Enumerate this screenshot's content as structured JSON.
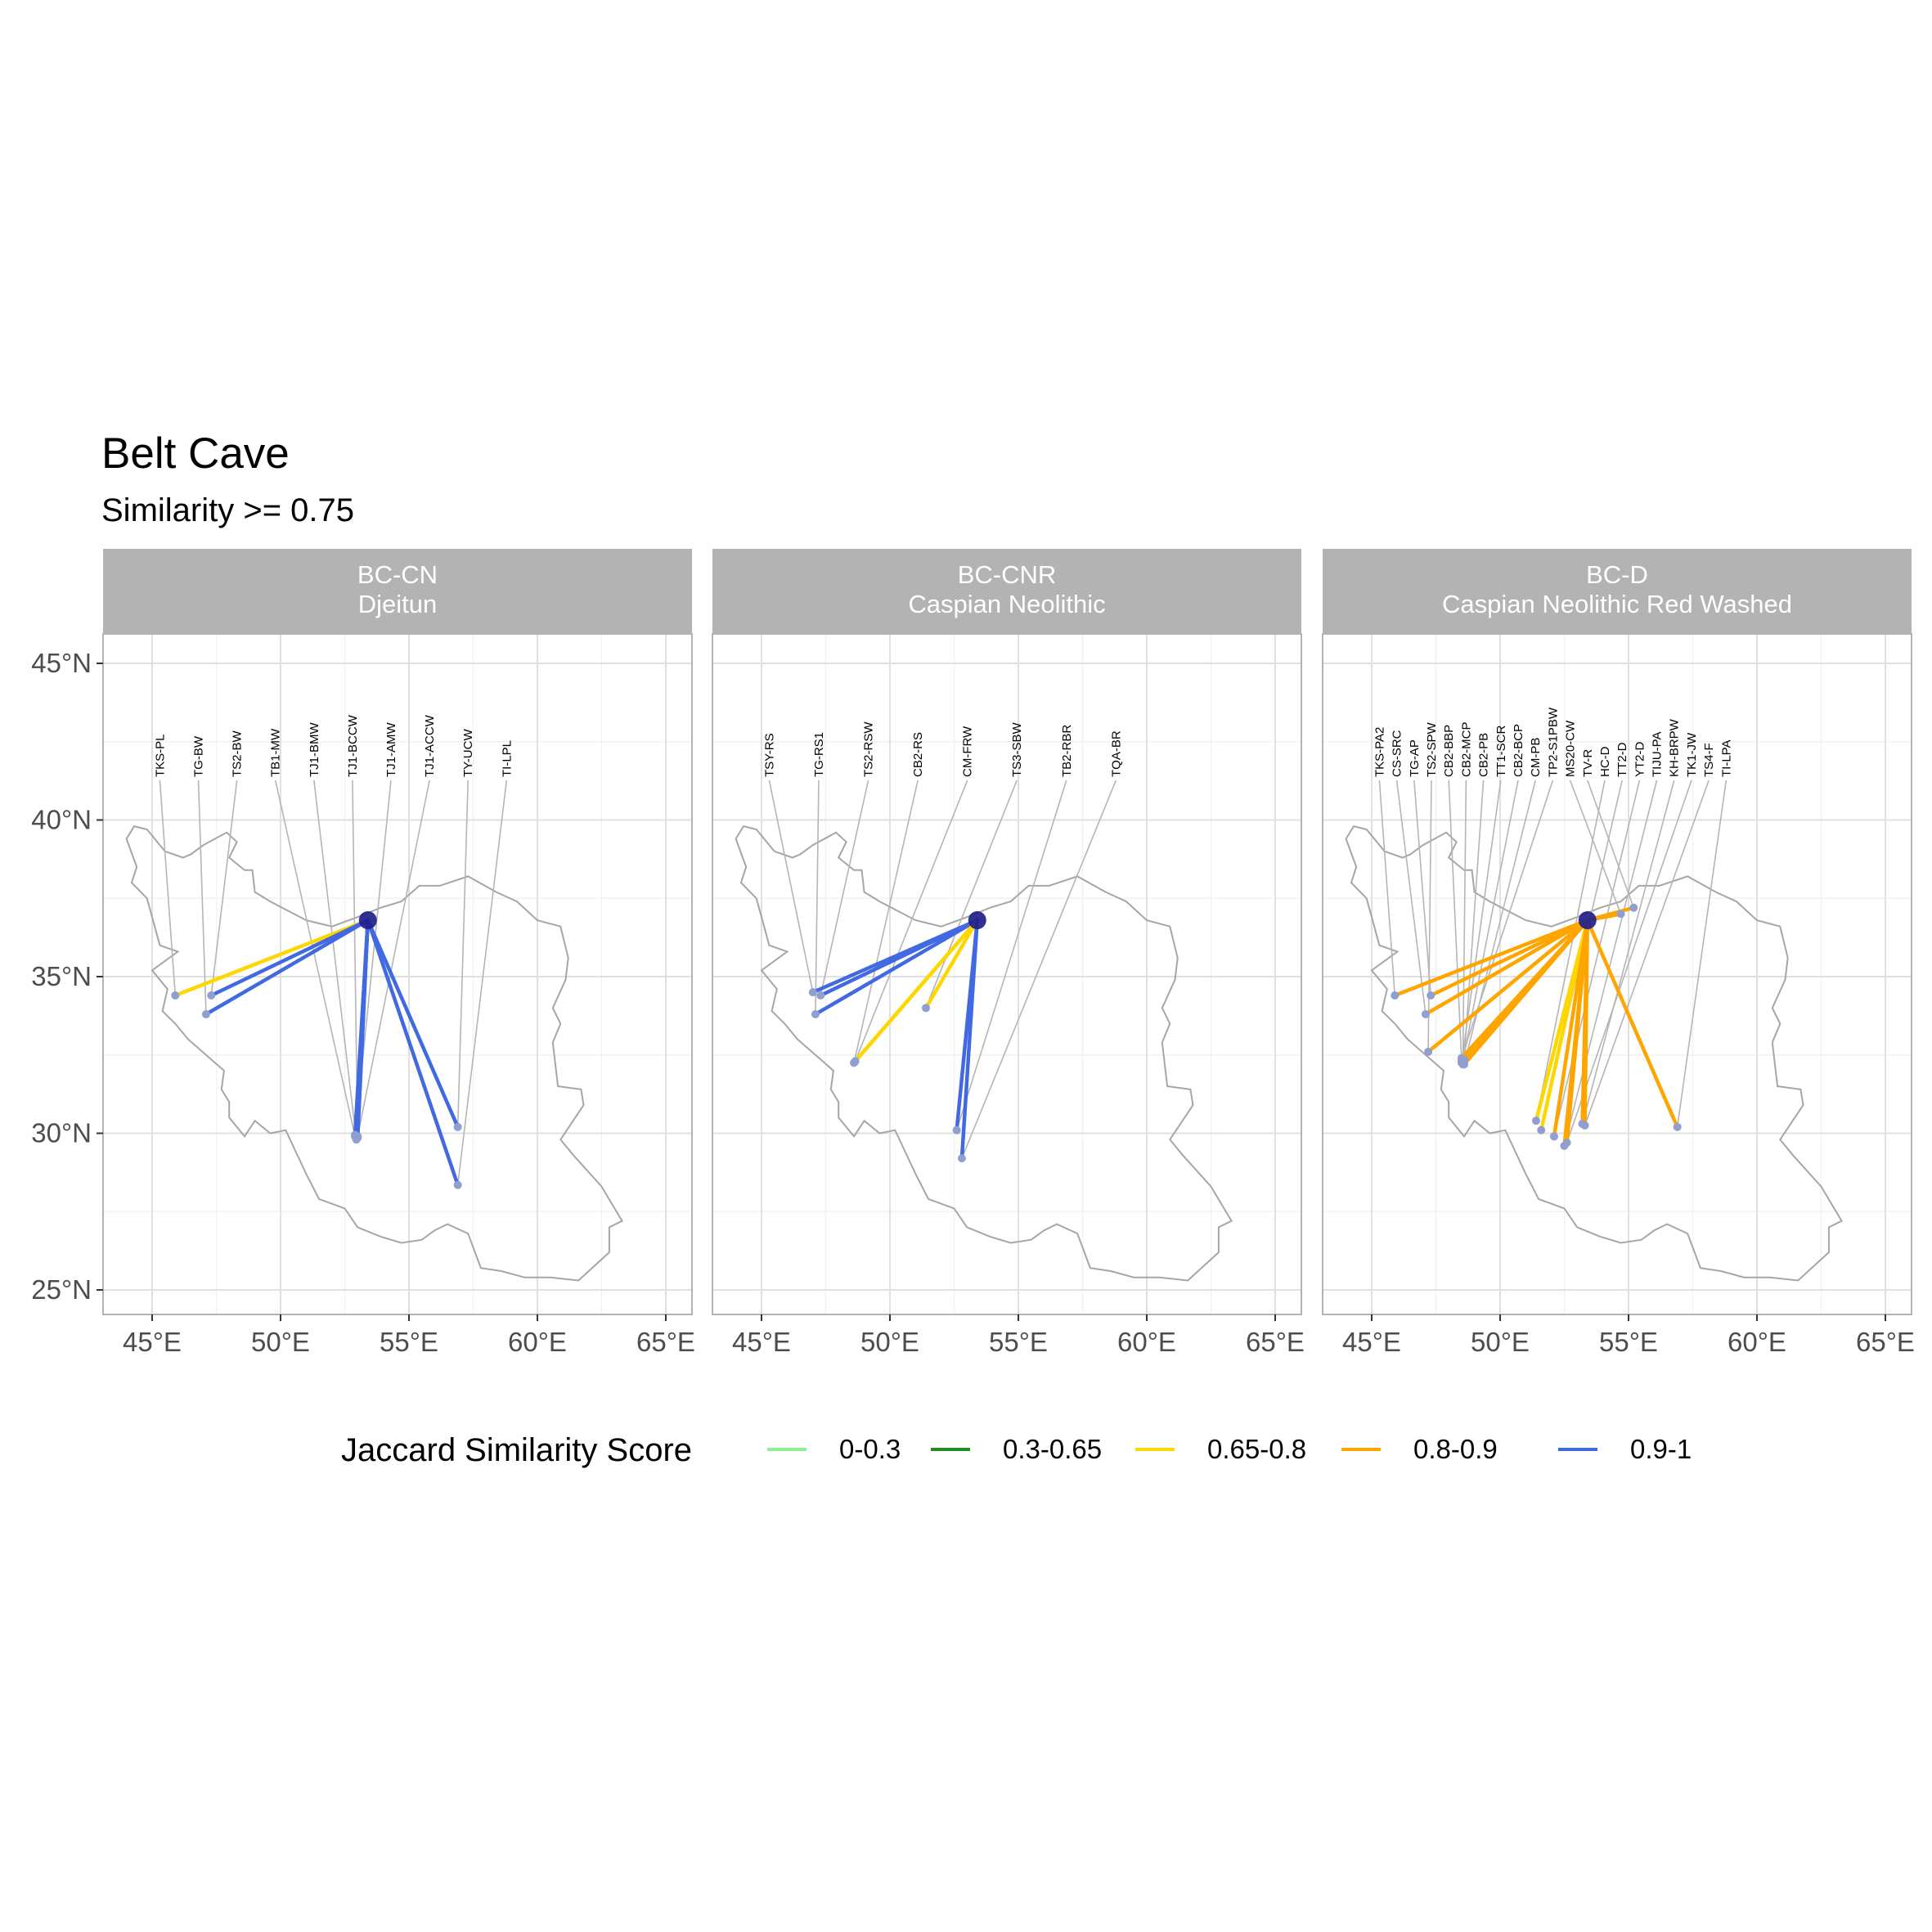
{
  "title": "Belt Cave",
  "subtitle": "Similarity >= 0.75",
  "colors": {
    "0-0.3": "#90ee90",
    "0.3-0.65": "#228b22",
    "0.65-0.8": "#ffd700",
    "0.8-0.9": "#ffa500",
    "0.9-1": "#4169e1",
    "panel_grid": "#e0e0e0",
    "strip_bg": "#b3b3b3",
    "country_outline": "#a6a6a6",
    "origin_point": "#1f1f8a",
    "site_point": "#8f9fd0"
  },
  "legend": {
    "title": "Jaccard Similarity Score",
    "items": [
      "0-0.3",
      "0.3-0.65",
      "0.65-0.8",
      "0.8-0.9",
      "0.9-1"
    ]
  },
  "chart_data": {
    "type": "map",
    "region": "Iran",
    "x_ticks": [
      "45°E",
      "50°E",
      "55°E",
      "60°E",
      "65°E"
    ],
    "y_ticks": [
      "25°N",
      "30°N",
      "35°N",
      "40°N",
      "45°N"
    ],
    "xlim": [
      43,
      66
    ],
    "ylim": [
      24.2,
      46
    ],
    "grid": true,
    "legend_position": "bottom",
    "origin": {
      "name": "Belt Cave",
      "lon": 53.4,
      "lat": 36.8
    },
    "panels": [
      {
        "strip": [
          "BC-CN",
          "Djeitun"
        ],
        "links": [
          {
            "site": "TKS-PL",
            "lon": 45.9,
            "lat": 34.4,
            "class": "0.65-0.8"
          },
          {
            "site": "TG-BW",
            "lon": 47.1,
            "lat": 33.8,
            "class": "0.9-1"
          },
          {
            "site": "TS2-BW",
            "lon": 47.3,
            "lat": 34.4,
            "class": "0.9-1"
          },
          {
            "site": "TB1-MW",
            "lon": 52.9,
            "lat": 29.9,
            "class": "0.9-1"
          },
          {
            "site": "TJ1-BMW",
            "lon": 52.95,
            "lat": 29.8,
            "class": "0.9-1"
          },
          {
            "site": "TJ1-BCCW",
            "lon": 53.0,
            "lat": 29.85,
            "class": "0.9-1"
          },
          {
            "site": "TJ1-AMW",
            "lon": 52.9,
            "lat": 29.95,
            "class": "0.9-1"
          },
          {
            "site": "TJ1-ACCW",
            "lon": 53.0,
            "lat": 29.9,
            "class": "0.9-1"
          },
          {
            "site": "TY-UCW",
            "lon": 56.9,
            "lat": 30.2,
            "class": "0.9-1"
          },
          {
            "site": "TI-LPL",
            "lon": 56.9,
            "lat": 28.35,
            "class": "0.9-1"
          }
        ]
      },
      {
        "strip": [
          "BC-CNR",
          "Caspian Neolithic"
        ],
        "links": [
          {
            "site": "TSY-RS",
            "lon": 47.0,
            "lat": 34.5,
            "class": "0.9-1"
          },
          {
            "site": "TG-RS1",
            "lon": 47.1,
            "lat": 33.8,
            "class": "0.9-1"
          },
          {
            "site": "TS2-RSW",
            "lon": 47.3,
            "lat": 34.4,
            "class": "0.9-1"
          },
          {
            "site": "CB2-RS",
            "lon": 48.6,
            "lat": 32.25,
            "class": "0.65-0.8"
          },
          {
            "site": "CM-FRW",
            "lon": 48.65,
            "lat": 32.3,
            "class": "0.65-0.8"
          },
          {
            "site": "TS3-SBW",
            "lon": 51.4,
            "lat": 34.0,
            "class": "0.65-0.8"
          },
          {
            "site": "TB2-RBR",
            "lon": 52.6,
            "lat": 30.1,
            "class": "0.9-1"
          },
          {
            "site": "TQA-BR",
            "lon": 52.8,
            "lat": 29.2,
            "class": "0.9-1"
          }
        ]
      },
      {
        "strip": [
          "BC-D",
          "Caspian Neolithic Red Washed"
        ],
        "links": [
          {
            "site": "TKS-PA2",
            "lon": 45.9,
            "lat": 34.4,
            "class": "0.8-0.9"
          },
          {
            "site": "CS-SRC",
            "lon": 47.1,
            "lat": 33.8,
            "class": "0.8-0.9"
          },
          {
            "site": "TG-AP",
            "lon": 47.3,
            "lat": 34.4,
            "class": "0.8-0.9"
          },
          {
            "site": "TS2-SPW",
            "lon": 47.2,
            "lat": 32.6,
            "class": "0.8-0.9"
          },
          {
            "site": "CB2-BBP",
            "lon": 48.5,
            "lat": 32.3,
            "class": "0.8-0.9"
          },
          {
            "site": "CB2-MCP",
            "lon": 48.55,
            "lat": 32.2,
            "class": "0.8-0.9"
          },
          {
            "site": "CB2-PB",
            "lon": 48.6,
            "lat": 32.35,
            "class": "0.8-0.9"
          },
          {
            "site": "TT1-SCR",
            "lon": 48.5,
            "lat": 32.25,
            "class": "0.8-0.9"
          },
          {
            "site": "CB2-BCP",
            "lon": 48.55,
            "lat": 32.3,
            "class": "0.8-0.9"
          },
          {
            "site": "CM-PB",
            "lon": 48.6,
            "lat": 32.2,
            "class": "0.8-0.9"
          },
          {
            "site": "TP2-S1PBW",
            "lon": 48.5,
            "lat": 32.4,
            "class": "0.8-0.9"
          },
          {
            "site": "MS20-CW",
            "lon": 54.7,
            "lat": 37.0,
            "class": "0.8-0.9"
          },
          {
            "site": "TV-R",
            "lon": 55.2,
            "lat": 37.2,
            "class": "0.8-0.9"
          },
          {
            "site": "HC-D",
            "lon": 51.4,
            "lat": 30.4,
            "class": "0.65-0.8"
          },
          {
            "site": "TT2-D",
            "lon": 51.6,
            "lat": 30.1,
            "class": "0.65-0.8"
          },
          {
            "site": "YT2-D",
            "lon": 52.1,
            "lat": 29.9,
            "class": "0.8-0.9"
          },
          {
            "site": "TIJU-PA",
            "lon": 52.5,
            "lat": 29.6,
            "class": "0.8-0.9"
          },
          {
            "site": "KH-BRPW",
            "lon": 53.2,
            "lat": 30.3,
            "class": "0.8-0.9"
          },
          {
            "site": "TK1-JW",
            "lon": 52.6,
            "lat": 29.7,
            "class": "0.8-0.9"
          },
          {
            "site": "TS4-F",
            "lon": 53.3,
            "lat": 30.25,
            "class": "0.8-0.9"
          },
          {
            "site": "TI-LPA",
            "lon": 56.9,
            "lat": 30.2,
            "class": "0.8-0.9"
          }
        ]
      }
    ]
  }
}
